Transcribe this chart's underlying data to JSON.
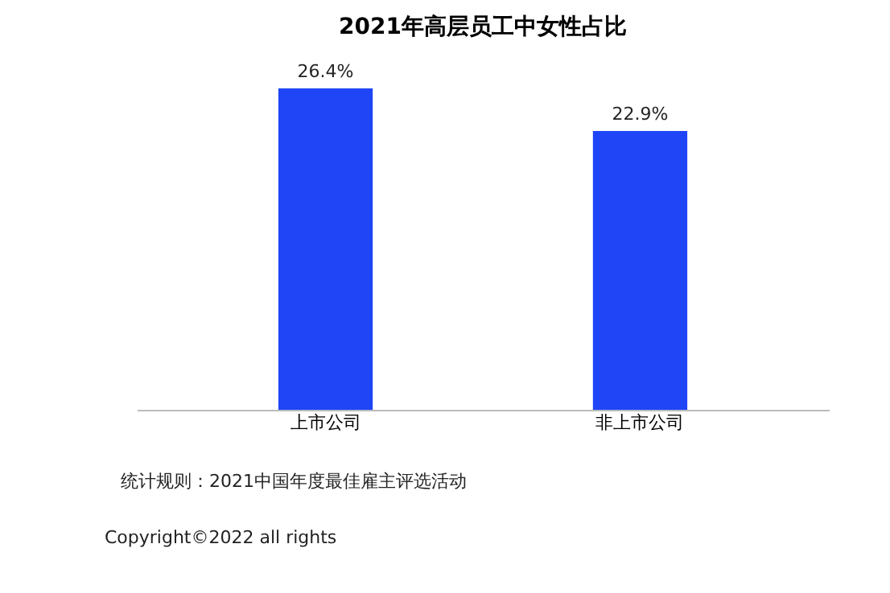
{
  "chart_data": {
    "type": "bar",
    "title": "2021年高层员工中女性占比",
    "categories": [
      "上市公司",
      "非上市公司"
    ],
    "values": [
      26.4,
      22.9
    ],
    "value_labels": [
      "26.4%",
      "22.9%"
    ],
    "color": "#1f45f6",
    "tick_labels": "x",
    "annotations": [
      "统计规则：2021中国年度最佳雇主评选活动",
      "Copyright©2022 all rights"
    ]
  }
}
